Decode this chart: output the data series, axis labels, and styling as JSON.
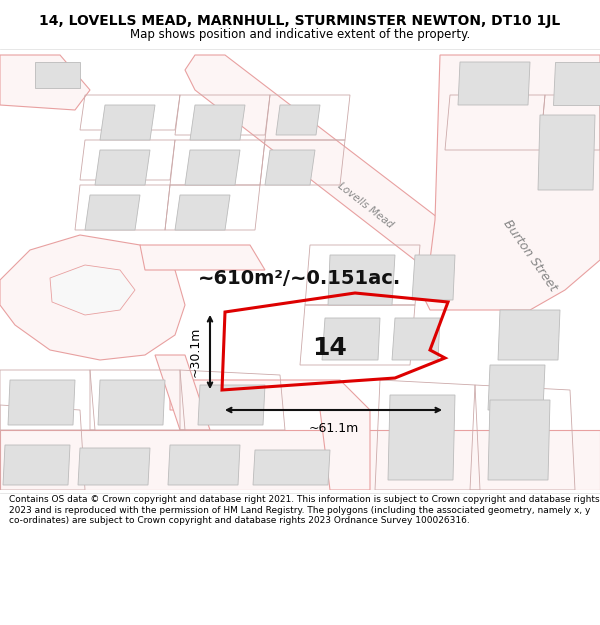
{
  "title": "14, LOVELLS MEAD, MARNHULL, STURMINSTER NEWTON, DT10 1JL",
  "subtitle": "Map shows position and indicative extent of the property.",
  "footer": "Contains OS data © Crown copyright and database right 2021. This information is subject to Crown copyright and database rights 2023 and is reproduced with the permission of HM Land Registry. The polygons (including the associated geometry, namely x, y co-ordinates) are subject to Crown copyright and database rights 2023 Ordnance Survey 100026316.",
  "area_text": "~610m²/~0.151ac.",
  "width_label": "~61.1m",
  "height_label": "~30.1m",
  "property_number": "14",
  "map_bg": "#ffffff",
  "road_fill": "#fdf5f5",
  "road_outline": "#e8a0a0",
  "plot_line_color": "#dd0000",
  "building_fill": "#e0e0e0",
  "building_edge": "#bbbbbb",
  "parcel_edge": "#ccaaaa",
  "street_color": "#999999",
  "street_label_lovells": "Lovells Mead",
  "street_label_burton": "Burton Street",
  "dim_line_color": "#111111"
}
